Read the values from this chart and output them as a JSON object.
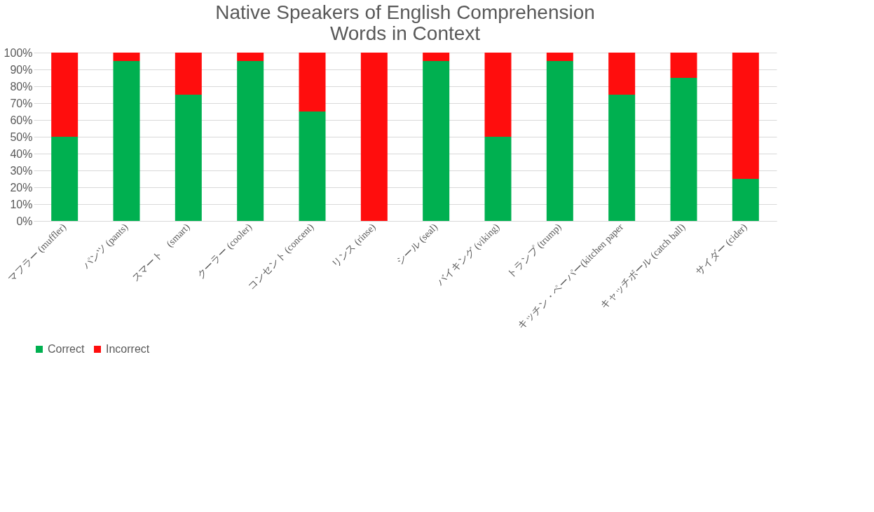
{
  "chart_data": {
    "type": "bar",
    "stacked": true,
    "title": [
      "Native Speakers of English Comprehension",
      "Words in Context"
    ],
    "categories": [
      "マフラー (muffler)",
      "パンツ (pants)",
      "スマート　(smart)",
      "クーラー (cooler)",
      "コンセント (concent)",
      "リンス (rinse)",
      "シール (seal)",
      "バイキング (viking)",
      "トランプ (trump)",
      "キッチン・ペーパー(kitchen paper",
      "キャッチボール (catch ball)",
      "サイダー (cider)"
    ],
    "series": [
      {
        "name": "Correct",
        "color": "#00b050",
        "values": [
          50,
          95,
          75,
          95,
          65,
          0,
          95,
          50,
          95,
          75,
          85,
          25
        ]
      },
      {
        "name": "Incorrect",
        "color": "#ff0d0d",
        "values": [
          50,
          5,
          25,
          5,
          35,
          100,
          5,
          50,
          5,
          25,
          15,
          75
        ]
      }
    ],
    "ylim": [
      0,
      100
    ],
    "yticks": [
      {
        "value": 0,
        "label": "0%"
      },
      {
        "value": 10,
        "label": "10%"
      },
      {
        "value": 20,
        "label": "20%"
      },
      {
        "value": 30,
        "label": "30%"
      },
      {
        "value": 40,
        "label": "40%"
      },
      {
        "value": 50,
        "label": "50%"
      },
      {
        "value": 60,
        "label": "60%"
      },
      {
        "value": 70,
        "label": "70%"
      },
      {
        "value": 80,
        "label": "80%"
      },
      {
        "value": 90,
        "label": "90%"
      },
      {
        "value": 100,
        "label": "100%"
      }
    ],
    "grid": "y",
    "legend": "bottom"
  }
}
